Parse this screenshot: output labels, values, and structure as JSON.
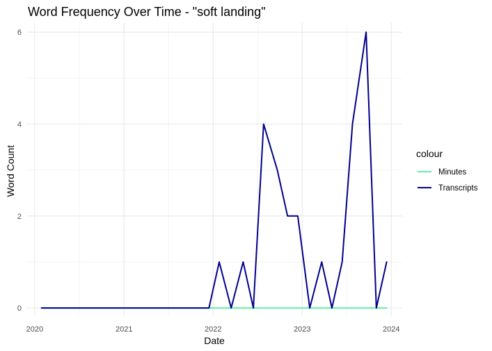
{
  "chart_data": {
    "type": "line",
    "title": "Word Frequency Over Time - \"soft landing\"",
    "xlabel": "Date",
    "ylabel": "Word Count",
    "xlim": [
      "2019-12-01",
      "2024-02-15"
    ],
    "ylim": [
      -0.18,
      6.2
    ],
    "x_ticks": [
      "2020-01-01",
      "2021-01-01",
      "2022-01-01",
      "2023-01-01",
      "2024-01-01"
    ],
    "x_tick_labels": [
      "2020",
      "2021",
      "2022",
      "2023",
      "2024"
    ],
    "y_ticks": [
      0,
      2,
      4,
      6
    ],
    "y_tick_labels": [
      "0",
      "2",
      "4",
      "6"
    ],
    "grid": true,
    "legend": {
      "title": "colour",
      "placement": "right"
    },
    "series": [
      {
        "name": "Minutes",
        "color": "#5ef0a8",
        "points": [
          [
            "2020-01-29",
            0
          ],
          [
            "2020-03-03",
            0
          ],
          [
            "2020-03-15",
            0
          ],
          [
            "2020-04-29",
            0
          ],
          [
            "2020-06-10",
            0
          ],
          [
            "2020-07-29",
            0
          ],
          [
            "2020-09-16",
            0
          ],
          [
            "2020-11-05",
            0
          ],
          [
            "2020-12-16",
            0
          ],
          [
            "2021-01-27",
            0
          ],
          [
            "2021-03-17",
            0
          ],
          [
            "2021-04-28",
            0
          ],
          [
            "2021-06-16",
            0
          ],
          [
            "2021-07-28",
            0
          ],
          [
            "2021-09-22",
            0
          ],
          [
            "2021-11-03",
            0
          ],
          [
            "2021-12-15",
            0
          ],
          [
            "2022-01-26",
            0
          ],
          [
            "2022-03-16",
            0
          ],
          [
            "2022-05-04",
            0
          ],
          [
            "2022-06-15",
            0
          ],
          [
            "2022-07-27",
            0
          ],
          [
            "2022-09-21",
            0
          ],
          [
            "2022-11-02",
            0
          ],
          [
            "2022-12-14",
            0
          ],
          [
            "2023-02-01",
            0
          ],
          [
            "2023-03-22",
            0
          ],
          [
            "2023-05-03",
            0
          ],
          [
            "2023-06-14",
            0
          ],
          [
            "2023-07-26",
            0
          ],
          [
            "2023-09-20",
            0
          ],
          [
            "2023-11-01",
            0
          ],
          [
            "2023-12-13",
            0
          ]
        ]
      },
      {
        "name": "Transcripts",
        "color": "#00008b",
        "points": [
          [
            "2020-01-29",
            0
          ],
          [
            "2020-03-03",
            0
          ],
          [
            "2020-03-15",
            0
          ],
          [
            "2020-04-29",
            0
          ],
          [
            "2020-06-10",
            0
          ],
          [
            "2020-07-29",
            0
          ],
          [
            "2020-09-16",
            0
          ],
          [
            "2020-11-05",
            0
          ],
          [
            "2020-12-16",
            0
          ],
          [
            "2021-01-27",
            0
          ],
          [
            "2021-03-17",
            0
          ],
          [
            "2021-04-28",
            0
          ],
          [
            "2021-06-16",
            0
          ],
          [
            "2021-07-28",
            0
          ],
          [
            "2021-09-22",
            0
          ],
          [
            "2021-11-03",
            0
          ],
          [
            "2021-12-15",
            0
          ],
          [
            "2022-01-26",
            1
          ],
          [
            "2022-03-16",
            0
          ],
          [
            "2022-05-04",
            1
          ],
          [
            "2022-06-15",
            0
          ],
          [
            "2022-07-27",
            4
          ],
          [
            "2022-09-21",
            3
          ],
          [
            "2022-11-02",
            2
          ],
          [
            "2022-12-14",
            2
          ],
          [
            "2023-02-01",
            0
          ],
          [
            "2023-03-22",
            1
          ],
          [
            "2023-05-03",
            0
          ],
          [
            "2023-06-14",
            1
          ],
          [
            "2023-07-26",
            4
          ],
          [
            "2023-09-20",
            6
          ],
          [
            "2023-11-01",
            0
          ],
          [
            "2023-12-13",
            1
          ]
        ]
      }
    ]
  }
}
